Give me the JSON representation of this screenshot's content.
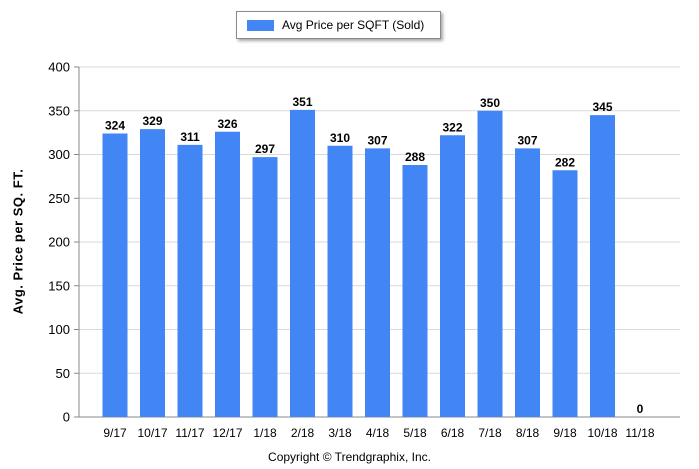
{
  "legend": {
    "label": "Avg Price per SQFT (Sold)",
    "color": "#4285f4"
  },
  "copyright": "Copyright © Trendgraphix, Inc.",
  "chart_data": {
    "type": "bar",
    "categories": [
      "9/17",
      "10/17",
      "11/17",
      "12/17",
      "1/18",
      "2/18",
      "3/18",
      "4/18",
      "5/18",
      "6/18",
      "7/18",
      "8/18",
      "9/18",
      "10/18",
      "11/18"
    ],
    "series": [
      {
        "name": "Avg Price per SQFT (Sold)",
        "values": [
          324,
          329,
          311,
          326,
          297,
          351,
          310,
          307,
          288,
          322,
          350,
          307,
          282,
          345,
          0
        ]
      }
    ],
    "ylabel": "Avg. Price per SQ. FT.",
    "xlabel": "",
    "ylim": [
      0,
      400
    ],
    "yticks": [
      0,
      50,
      100,
      150,
      200,
      250,
      300,
      350,
      400
    ],
    "grid": true,
    "legend_position": "top-center",
    "data_labels": true
  }
}
